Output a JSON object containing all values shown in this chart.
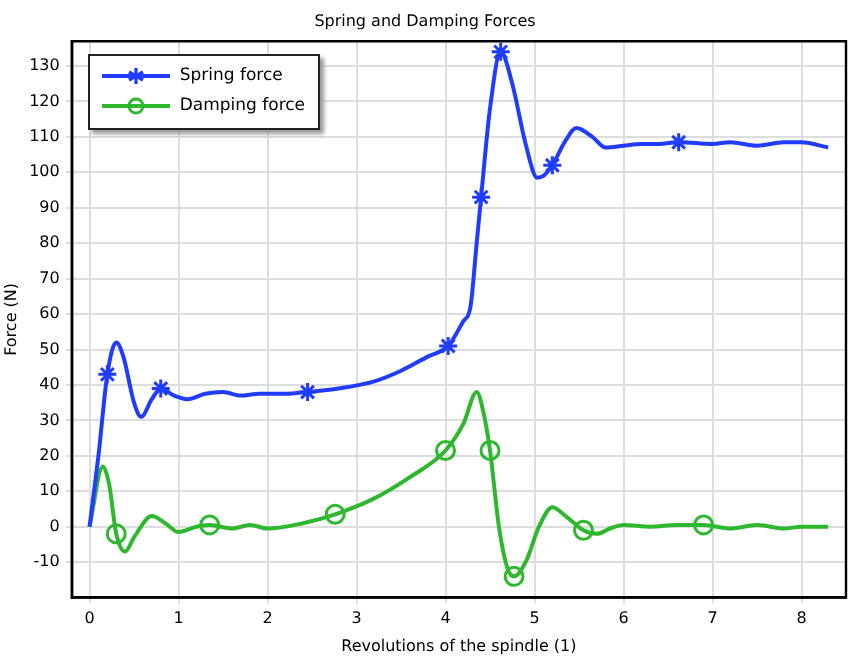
{
  "chart_data": {
    "type": "line",
    "title": "Spring and Damping Forces",
    "xlabel": "Revolutions of the spindle (1)",
    "ylabel": "Force (N)",
    "xlim": [
      -0.2,
      8.5
    ],
    "xticks": [
      0,
      1,
      2,
      3,
      4,
      5,
      6,
      7,
      8
    ],
    "ylim": [
      -20,
      137
    ],
    "yticks": [
      -10,
      0,
      10,
      20,
      30,
      40,
      50,
      60,
      70,
      80,
      90,
      100,
      110,
      120,
      130
    ],
    "grid": true,
    "legend": "top left",
    "line_style": "solid",
    "series": [
      {
        "name": "Spring force",
        "type": "line",
        "color": "#1f3cff",
        "x": [
          0,
          0.1,
          0.2,
          0.3,
          0.38,
          0.5,
          0.58,
          0.7,
          0.8,
          0.95,
          1.1,
          1.3,
          1.5,
          1.7,
          1.9,
          2.2,
          2.45,
          2.8,
          3.2,
          3.5,
          3.8,
          4.03,
          4.2,
          4.28,
          4.35,
          4.4,
          4.5,
          4.62,
          4.75,
          4.9,
          5.03,
          5.1,
          5.2,
          5.35,
          5.47,
          5.65,
          5.8,
          6.0,
          6.2,
          6.4,
          6.62,
          7.0,
          7.2,
          7.5,
          7.8,
          8.0,
          8.3
        ],
        "values": [
          0,
          20,
          43,
          52,
          48,
          35,
          31,
          36,
          39,
          37,
          36,
          37.5,
          38,
          37,
          37.5,
          37.5,
          38,
          39,
          41,
          44,
          48,
          51,
          58,
          62,
          80,
          93,
          118,
          134,
          125,
          108,
          98.5,
          99,
          102,
          109,
          112.5,
          110,
          107,
          107.5,
          108,
          108,
          108.5,
          108,
          108.5,
          107.5,
          108.5,
          108.5,
          107
        ]
      },
      {
        "name": "Damping force",
        "type": "line",
        "color": "#2db82d",
        "x": [
          0,
          0.15,
          0.22,
          0.3,
          0.4,
          0.5,
          0.7,
          0.85,
          1.0,
          1.2,
          1.35,
          1.6,
          1.8,
          2.0,
          2.4,
          2.76,
          3.2,
          3.6,
          4.0,
          4.2,
          4.35,
          4.42,
          4.5,
          4.6,
          4.7,
          4.77,
          4.9,
          5.05,
          5.2,
          5.35,
          5.55,
          5.7,
          5.85,
          6.0,
          6.3,
          6.6,
          6.9,
          7.2,
          7.5,
          7.8,
          8.0,
          8.3
        ],
        "values": [
          0,
          17,
          12,
          -2,
          -7,
          -3,
          3,
          1,
          -1.5,
          0,
          0.5,
          -0.5,
          0.5,
          -0.5,
          1,
          3.5,
          8,
          14,
          21.5,
          29,
          38,
          33,
          21.5,
          0,
          -12,
          -14,
          -10,
          0,
          5.5,
          3,
          -1,
          -2,
          -0.5,
          0.5,
          0,
          0.5,
          0.5,
          -0.5,
          0.5,
          -0.5,
          0,
          0
        ]
      },
      {
        "type": "scatter",
        "color": "#1f3cff",
        "marker": "cross",
        "x": [
          0.2,
          0.8,
          2.45,
          4.03,
          4.4,
          4.62,
          5.2,
          6.62
        ],
        "values": [
          43,
          39,
          38,
          51,
          93,
          134,
          102,
          108.5
        ]
      },
      {
        "type": "scatter",
        "color": "#2db82d",
        "marker": "circle",
        "x": [
          0.3,
          1.35,
          2.76,
          4.0,
          4.5,
          4.77,
          5.55,
          6.9
        ],
        "values": [
          -2,
          0.5,
          3.5,
          21.5,
          21.5,
          -14,
          -1,
          0.5
        ]
      }
    ]
  }
}
